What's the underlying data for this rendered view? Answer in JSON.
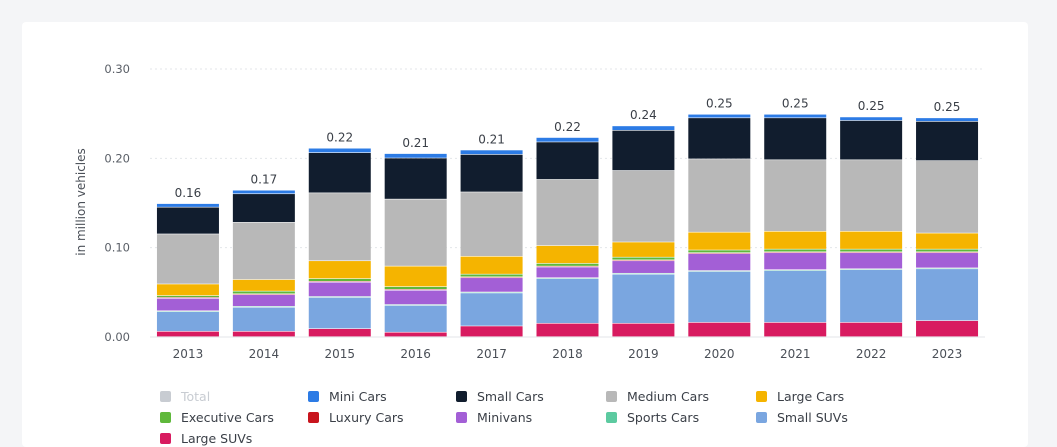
{
  "chart_data": {
    "type": "bar",
    "stacked": true,
    "ylabel": "in million vehicles",
    "ylim": [
      0,
      0.3
    ],
    "yticks": [
      "0.00",
      "0.10",
      "0.20",
      "0.30"
    ],
    "grid": true,
    "legend_position": "bottom",
    "categories": [
      "2013",
      "2014",
      "2015",
      "2016",
      "2017",
      "2018",
      "2019",
      "2020",
      "2021",
      "2022",
      "2023"
    ],
    "totals": [
      "0.16",
      "0.17",
      "0.22",
      "0.21",
      "0.21",
      "0.22",
      "0.24",
      "0.25",
      "0.25",
      "0.25",
      "0.25"
    ],
    "series": [
      {
        "name": "Large SUVs",
        "color": "#d81b60",
        "values": [
          0.006,
          0.006,
          0.009,
          0.005,
          0.012,
          0.015,
          0.015,
          0.016,
          0.016,
          0.016,
          0.018
        ]
      },
      {
        "name": "Small SUVs",
        "color": "#7aa6e0",
        "values": [
          0.022,
          0.027,
          0.035,
          0.03,
          0.037,
          0.05,
          0.055,
          0.057,
          0.058,
          0.059,
          0.058
        ]
      },
      {
        "name": "Sports Cars",
        "color": "#5ccaa0",
        "values": [
          0.001,
          0.001,
          0.001,
          0.001,
          0.001,
          0.001,
          0.001,
          0.001,
          0.001,
          0.001,
          0.001
        ]
      },
      {
        "name": "Minivans",
        "color": "#a35fd6",
        "values": [
          0.014,
          0.013,
          0.016,
          0.016,
          0.016,
          0.012,
          0.014,
          0.019,
          0.019,
          0.018,
          0.017
        ]
      },
      {
        "name": "Luxury Cars",
        "color": "#c8141d",
        "values": [
          0.001,
          0.001,
          0.001,
          0.001,
          0.001,
          0.001,
          0.001,
          0.001,
          0.001,
          0.001,
          0.001
        ]
      },
      {
        "name": "Executive Cars",
        "color": "#5fb83b",
        "values": [
          0.002,
          0.003,
          0.003,
          0.003,
          0.003,
          0.003,
          0.003,
          0.003,
          0.003,
          0.003,
          0.003
        ]
      },
      {
        "name": "Large Cars",
        "color": "#f5b400",
        "values": [
          0.013,
          0.013,
          0.02,
          0.023,
          0.02,
          0.02,
          0.017,
          0.02,
          0.02,
          0.02,
          0.018
        ]
      },
      {
        "name": "Medium Cars",
        "color": "#b8b8b8",
        "values": [
          0.056,
          0.064,
          0.076,
          0.075,
          0.072,
          0.074,
          0.08,
          0.082,
          0.08,
          0.08,
          0.081
        ]
      },
      {
        "name": "Small Cars",
        "color": "#111d2e",
        "values": [
          0.03,
          0.032,
          0.045,
          0.046,
          0.042,
          0.042,
          0.045,
          0.046,
          0.047,
          0.044,
          0.044
        ]
      },
      {
        "name": "Mini Cars",
        "color": "#2c7be5",
        "values": [
          0.004,
          0.004,
          0.005,
          0.005,
          0.005,
          0.005,
          0.005,
          0.004,
          0.004,
          0.004,
          0.004
        ]
      }
    ]
  },
  "legend": [
    {
      "label": "Total",
      "color": "#c8ccd2",
      "muted": true
    },
    {
      "label": "Mini Cars",
      "color": "#2c7be5"
    },
    {
      "label": "Small Cars",
      "color": "#111d2e"
    },
    {
      "label": "Medium Cars",
      "color": "#b8b8b8"
    },
    {
      "label": "Large Cars",
      "color": "#f5b400"
    },
    {
      "label": "Executive Cars",
      "color": "#5fb83b"
    },
    {
      "label": "Luxury Cars",
      "color": "#c8141d"
    },
    {
      "label": "Minivans",
      "color": "#a35fd6"
    },
    {
      "label": "Sports Cars",
      "color": "#5ccaa0"
    },
    {
      "label": "Small SUVs",
      "color": "#7aa6e0"
    },
    {
      "label": "Large SUVs",
      "color": "#d81b60"
    }
  ]
}
